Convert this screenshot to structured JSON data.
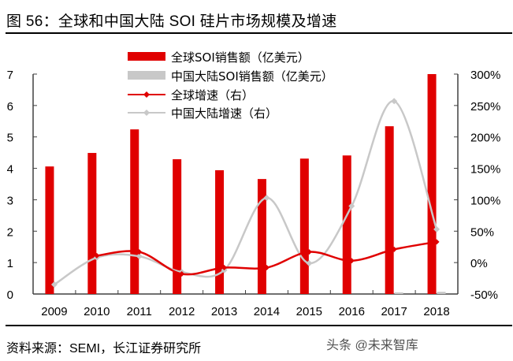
{
  "figure": {
    "title": "图 56：全球和中国大陆 SOI 硅片市场规模及增速",
    "source": "资料来源：SEMI，长江证券研究所",
    "watermark": "头条 @未来智库"
  },
  "colors": {
    "global": "#e00000",
    "china": "#c8c8c8",
    "axis": "#404040"
  },
  "chart_data": {
    "type": "bar",
    "title": "全球和中国大陆 SOI 硅片市场规模及增速",
    "categories": [
      "2009",
      "2010",
      "2011",
      "2012",
      "2013",
      "2014",
      "2015",
      "2016",
      "2017",
      "2018"
    ],
    "series": [
      {
        "name": "全球SOI销售额（亿美元）",
        "type": "bar",
        "axis": "left",
        "values": [
          4.06,
          4.49,
          5.24,
          4.29,
          3.94,
          3.66,
          4.31,
          4.41,
          5.34,
          7.0
        ]
      },
      {
        "name": "中国大陆SOI销售额（亿美元）",
        "type": "bar",
        "axis": "left",
        "values": [
          0,
          0,
          0,
          0,
          0,
          0,
          0,
          0,
          0.03,
          0.07
        ]
      },
      {
        "name": "全球增速（右）",
        "type": "line",
        "axis": "right",
        "unit": "%",
        "values": [
          null,
          11,
          17,
          -18,
          -8,
          -8,
          17,
          3,
          21,
          33
        ]
      },
      {
        "name": "中国大陆增速（右）",
        "type": "line",
        "axis": "right",
        "unit": "%",
        "values": [
          -35,
          8,
          10,
          -15,
          -12,
          103,
          -1,
          90,
          257,
          53
        ]
      }
    ],
    "left_axis": {
      "ylim": [
        0,
        7
      ],
      "ticks": [
        "0",
        "1",
        "2",
        "3",
        "4",
        "5",
        "6",
        "7"
      ]
    },
    "right_axis": {
      "ylim": [
        -50,
        300
      ],
      "ticks": [
        "-50%",
        "0%",
        "50%",
        "100%",
        "150%",
        "200%",
        "250%",
        "300%"
      ]
    },
    "xlabel": "",
    "ylabel": "",
    "grid": false,
    "legend_position": "top-center"
  }
}
